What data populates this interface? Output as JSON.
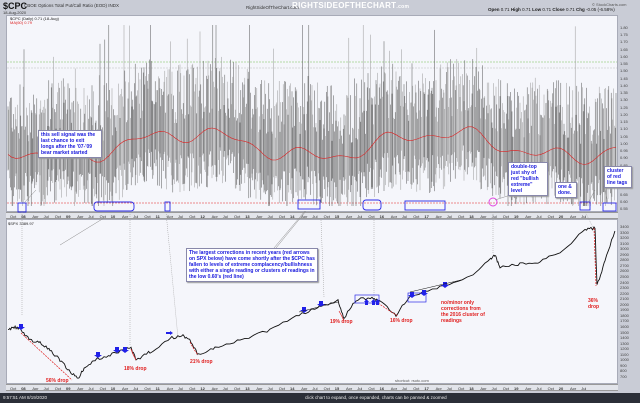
{
  "header": {
    "symbol": "$CPC",
    "description": "CBOE Options Total Put/Call Ratio (EOD) INDX",
    "date": "18-Aug-2020",
    "site_text": "RightSideOfTheChart.com",
    "brand": "RIGHTSIDEOFTHECHART",
    "brand_suffix": ".com",
    "stockcharts": "© StockCharts.com",
    "ohlc": {
      "open_label": "Open",
      "open": "0.71",
      "high_label": "High",
      "high": "0.71",
      "low_label": "Low",
      "low": "0.71",
      "close_label": "Close",
      "close": "0.71",
      "chg_label": "Chg",
      "chg": "-0.05 (-6.58%)"
    }
  },
  "legends": {
    "cpc": "$CPC (Daily) 0.71 (18-Aug)",
    "ma": "MA(60) 0.79",
    "spx": "$SPX 3389.97"
  },
  "annotations": {
    "sell_signal": "this sell signal was the last chance to exit longs after the '07-'09 bear market started",
    "largest_corrections": "The largest corrections in recent years (red arrows on SPX below) have come shortly after the $CPC has fallen to levels of extreme complacency/bullishness with either a single reading or clusters of readings in the low 0.60's (red line)",
    "double_top": "double-top just shy of red \"bullish extreme\" level",
    "one_done": "one & done.",
    "cluster": "cluster of red line tags",
    "no_minor": "no/minor only corrections from the 2016 cluster of readings"
  },
  "drops": [
    {
      "label": "56% drop"
    },
    {
      "label": "18% drop"
    },
    {
      "label": "21% drop"
    },
    {
      "label": "19% drop"
    },
    {
      "label": "16% drop"
    },
    {
      "label": "36% drop"
    }
  ],
  "footer": {
    "timestamp": "9:57:51 AM 8/19/2020",
    "hint": "click chart to expand, once expanded, charts can be panned & zoomed",
    "shortcut": "shortcut: rsotc.com"
  },
  "chart_data": [
    {
      "type": "line",
      "title": "$CPC CBOE Options Total Put/Call Ratio (EOD)",
      "series": [
        {
          "name": "$CPC (Daily)",
          "last": 0.71
        },
        {
          "name": "MA(60)",
          "last": 0.79
        }
      ],
      "ylim": [
        0.55,
        1.8
      ],
      "yticks": [
        0.55,
        0.6,
        0.65,
        0.7,
        0.75,
        0.8,
        0.85,
        0.9,
        0.95,
        1.0,
        1.05,
        1.1,
        1.15,
        1.2,
        1.25,
        1.3,
        1.35,
        1.4,
        1.45,
        1.5,
        1.55,
        1.6,
        1.65,
        1.7,
        1.75,
        1.8
      ],
      "reference_lines": [
        {
          "value": 0.62,
          "color": "#e02020",
          "style": "dashed",
          "label": "bullish extreme"
        },
        {
          "value": 1.52,
          "color": "#66aa44",
          "style": "dashed"
        }
      ],
      "x_range": [
        "Oct 2007",
        "Aug 2020"
      ]
    },
    {
      "type": "line",
      "title": "$SPX",
      "series": [
        {
          "name": "$SPX",
          "last": 3389.97
        }
      ],
      "ylim": [
        700,
        3400
      ],
      "yticks": [
        700,
        800,
        900,
        1000,
        1100,
        1200,
        1300,
        1400,
        1500,
        1600,
        1700,
        1800,
        1900,
        2000,
        2100,
        2200,
        2300,
        2400,
        2500,
        2600,
        2700,
        2800,
        2900,
        3000,
        3100,
        3200,
        3300,
        3400
      ],
      "drops": [
        "56% drop (2007-09)",
        "18% drop (2010)",
        "21% drop (2011)",
        "19% drop (2015)",
        "16% drop (2018)",
        "36% drop (2020)"
      ]
    }
  ],
  "x_axis_labels": [
    "Oct",
    "08",
    "Apr",
    "Jul",
    "Oct",
    "09",
    "Apr",
    "Jul",
    "Oct",
    "10",
    "Apr",
    "Jul",
    "Oct",
    "11",
    "Apr",
    "Jul",
    "Oct",
    "12",
    "Apr",
    "Jul",
    "Oct",
    "13",
    "Apr",
    "Jul",
    "Oct",
    "14",
    "Apr",
    "Jul",
    "Oct",
    "15",
    "Apr",
    "Jul",
    "Oct",
    "16",
    "Apr",
    "Jul",
    "Oct",
    "17",
    "Apr",
    "Jul",
    "Oct",
    "18",
    "Apr",
    "Jul",
    "Oct",
    "19",
    "Apr",
    "Jul",
    "Oct",
    "20",
    "Apr",
    "Jul"
  ],
  "y_axis_top": [
    "1.80",
    "1.75",
    "1.70",
    "1.65",
    "1.60",
    "1.55",
    "1.50",
    "1.45",
    "1.40",
    "1.35",
    "1.30",
    "1.25",
    "1.20",
    "1.15",
    "1.10",
    "1.05",
    "1.00",
    "0.95",
    "0.90",
    "0.85",
    "0.80",
    "0.75",
    "0.70",
    "0.65",
    "0.60",
    "0.55"
  ],
  "y_axis_bottom": [
    "3400",
    "3300",
    "3200",
    "3100",
    "3000",
    "2900",
    "2800",
    "2700",
    "2600",
    "2500",
    "2400",
    "2300",
    "2200",
    "2100",
    "2000",
    "1900",
    "1800",
    "1700",
    "1600",
    "1500",
    "1400",
    "1300",
    "1200",
    "1100",
    "1000",
    "900",
    "800",
    "700"
  ]
}
